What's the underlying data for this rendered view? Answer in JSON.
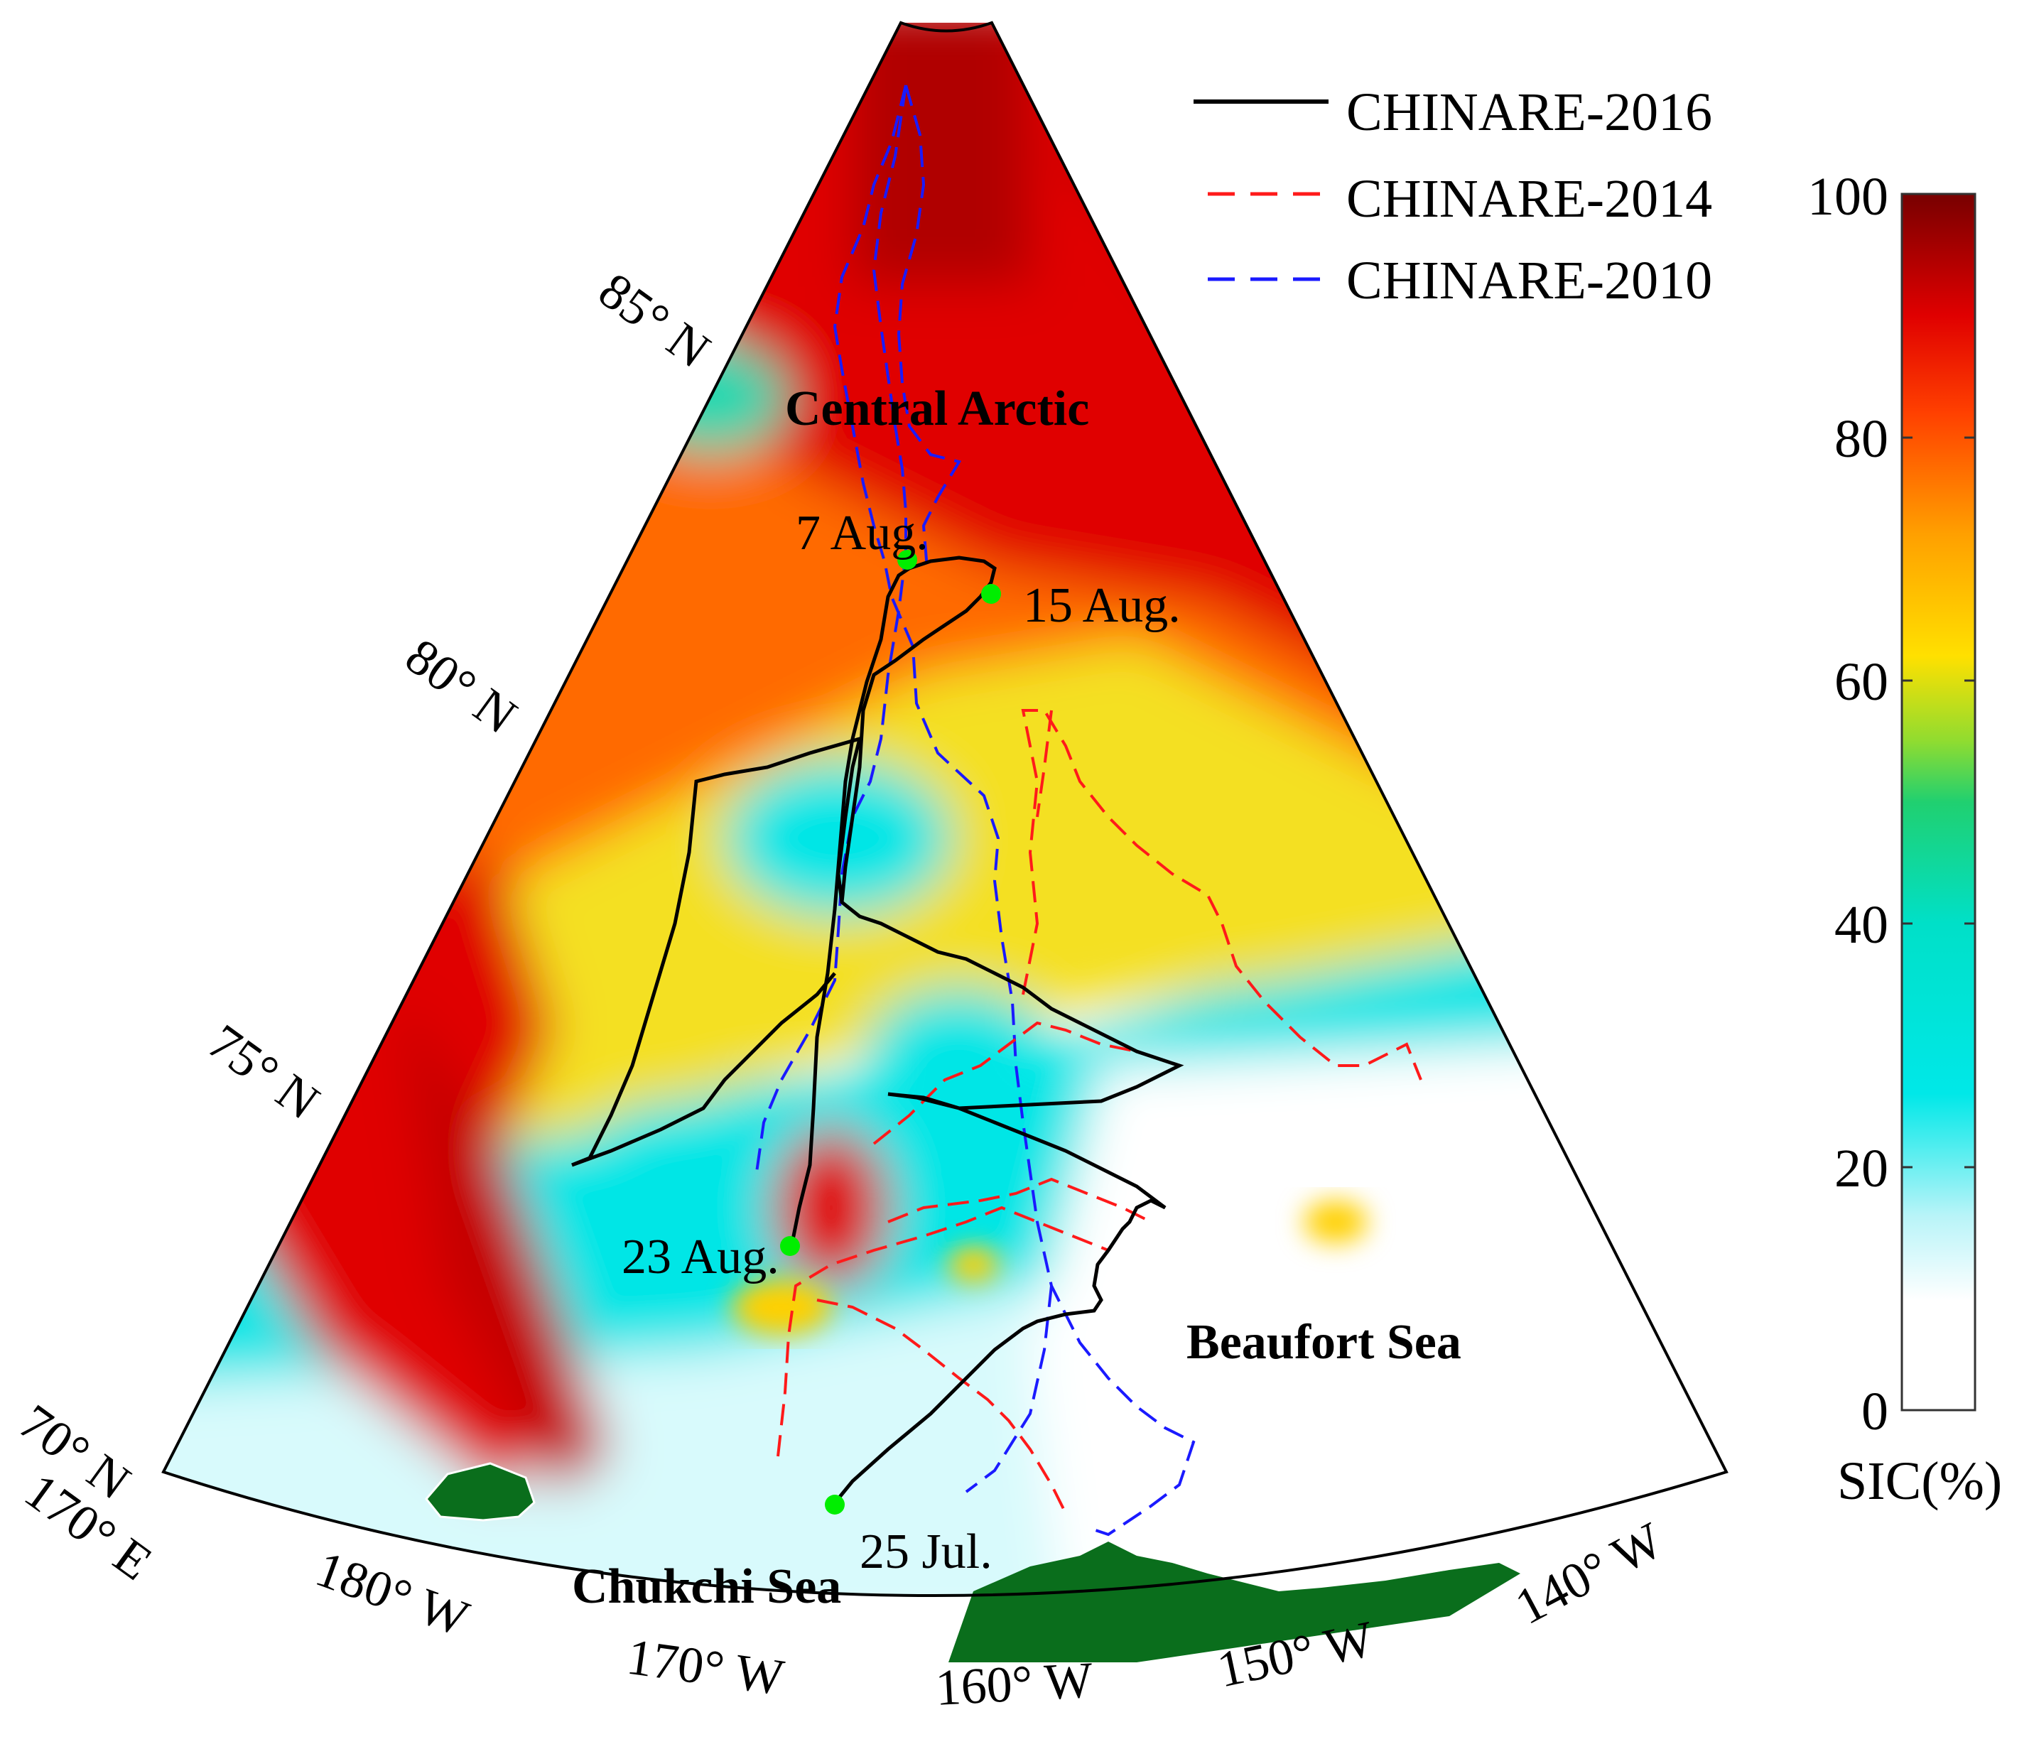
{
  "legend": {
    "entries": [
      {
        "label": "CHINARE-2016",
        "color": "#000000",
        "dash": "solid"
      },
      {
        "label": "CHINARE-2014",
        "color": "#ff0000",
        "dash": "dashed"
      },
      {
        "label": "CHINARE-2010",
        "color": "#0000ff",
        "dash": "dashed"
      }
    ]
  },
  "colorbar": {
    "title": "SIC(%)",
    "ticks": [
      "100",
      "80",
      "60",
      "40",
      "20",
      "0"
    ],
    "stops": [
      "#ffffff",
      "#b8f4f8",
      "#00e8e8",
      "#00d8b0",
      "#40d060",
      "#c8e820",
      "#ffe000",
      "#ffa000",
      "#ff5000",
      "#ee0000",
      "#b00000",
      "#7a0000"
    ]
  },
  "graticule": {
    "latitudes": [
      "70° N",
      "75° N",
      "80° N",
      "85° N"
    ],
    "longitudes": [
      "170° E",
      "180° W",
      "170° W",
      "160° W",
      "150° W",
      "140° W"
    ]
  },
  "regions": [
    "Central Arctic",
    "Beaufort Sea",
    "Chukchi Sea"
  ],
  "dates": [
    "7 Aug.",
    "15 Aug.",
    "23 Aug.",
    "25 Jul."
  ],
  "colors": {
    "land": "#0a6e1c",
    "marker": "#00ee00"
  }
}
